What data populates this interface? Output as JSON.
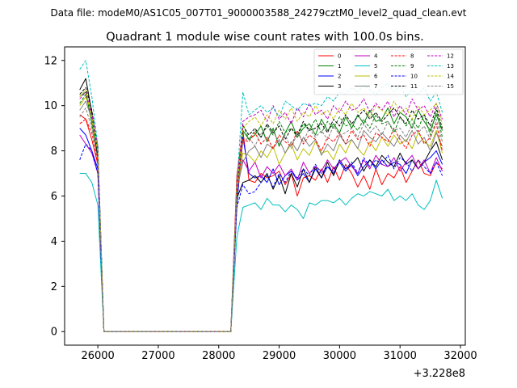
{
  "figure": {
    "suptitle": "Data file: modeM0/AS1C05_007T01_9000003588_24279cztM0_level2_quad_clean.evt"
  },
  "chart_data": {
    "type": "line",
    "title": "Quadrant 1 module wise count rates with 100.0s bins.",
    "xlabel": "",
    "ylabel": "",
    "x_offset_label": "+3.228e8",
    "xlim": [
      25450,
      32080
    ],
    "ylim": [
      -0.6,
      12.6
    ],
    "x_ticks": [
      26000,
      27000,
      28000,
      29000,
      30000,
      31000,
      32000
    ],
    "x_tick_labels": [
      "26000",
      "27000",
      "28000",
      "29000",
      "30000",
      "31000",
      "32000"
    ],
    "y_ticks": [
      0,
      2,
      4,
      6,
      8,
      10,
      12
    ],
    "y_tick_labels": [
      "0",
      "2",
      "4",
      "6",
      "8",
      "10",
      "12"
    ],
    "grid": false,
    "legend_position": "top-right",
    "gap": {
      "x_start": 26100,
      "x_end": 28200,
      "value": 0.0
    },
    "segment1_x": [
      25700,
      25800,
      25900,
      26000
    ],
    "segment2_start": 28300,
    "segment2_step": 100,
    "segment2_count": 35,
    "series": [
      {
        "name": "0",
        "color": "#ff0000",
        "dash": "solid",
        "seg1": [
          9.6,
          9.4,
          8.5,
          7.4
        ],
        "seg2": [
          6.9,
          8.9,
          6.7,
          6.6,
          7.0,
          6.8,
          6.9,
          7.1,
          6.5,
          7.0,
          6.0,
          6.8,
          6.9,
          6.7,
          7.2,
          6.6,
          7.3,
          6.7,
          7.4,
          7.0,
          6.4,
          6.9,
          6.3,
          7.2,
          6.5,
          7.0,
          6.8,
          7.3,
          6.6,
          7.1,
          7.6,
          7.0,
          6.9,
          7.5,
          7.2
        ]
      },
      {
        "name": "1",
        "color": "#008000",
        "dash": "solid",
        "seg1": [
          10.4,
          10.6,
          9.2,
          7.8
        ],
        "seg2": [
          5.8,
          8.9,
          8.5,
          8.7,
          9.1,
          8.4,
          9.0,
          8.2,
          8.8,
          9.3,
          8.6,
          9.0,
          9.2,
          8.7,
          9.4,
          8.9,
          9.2,
          8.8,
          9.5,
          9.0,
          9.6,
          9.2,
          9.8,
          9.3,
          9.4,
          9.9,
          9.2,
          9.7,
          9.5,
          9.0,
          9.8,
          9.3,
          8.9,
          9.6,
          8.9
        ]
      },
      {
        "name": "2",
        "color": "#0000ff",
        "dash": "solid",
        "seg1": [
          9.0,
          8.7,
          8.0,
          7.2
        ],
        "seg2": [
          5.6,
          8.6,
          7.0,
          6.8,
          6.9,
          6.6,
          7.2,
          6.5,
          6.9,
          7.1,
          6.7,
          7.0,
          6.6,
          7.2,
          6.8,
          7.3,
          7.0,
          7.5,
          7.1,
          7.4,
          6.9,
          7.3,
          7.6,
          7.2,
          7.6,
          7.3,
          7.5,
          7.4,
          7.0,
          7.6,
          7.2,
          7.5,
          7.7,
          8.0,
          7.4
        ]
      },
      {
        "name": "3",
        "color": "#000000",
        "dash": "solid",
        "seg1": [
          10.7,
          11.2,
          9.7,
          7.6
        ],
        "seg2": [
          5.9,
          6.6,
          6.7,
          6.9,
          6.6,
          7.0,
          6.3,
          6.9,
          6.1,
          7.0,
          6.4,
          7.2,
          6.6,
          7.3,
          6.8,
          7.5,
          6.9,
          7.6,
          7.2,
          7.4,
          7.7,
          7.1,
          7.6,
          7.3,
          7.8,
          7.5,
          7.3,
          7.9,
          7.4,
          7.6,
          7.2,
          7.5,
          8.0,
          8.4,
          7.6
        ]
      },
      {
        "name": "4",
        "color": "#c000c0",
        "dash": "solid",
        "seg1": [
          8.7,
          8.3,
          7.9,
          7.0
        ],
        "seg2": [
          6.2,
          7.6,
          7.1,
          7.5,
          6.8,
          7.3,
          7.0,
          7.4,
          6.9,
          7.2,
          6.7,
          7.5,
          7.0,
          7.3,
          7.1,
          7.6,
          7.2,
          7.5,
          7.7,
          7.3,
          7.0,
          7.6,
          7.2,
          7.8,
          7.4,
          7.3,
          7.7,
          7.1,
          7.5,
          7.8,
          7.2,
          7.6,
          7.0,
          7.7,
          7.1
        ]
      },
      {
        "name": "5",
        "color": "#00bfbf",
        "dash": "solid",
        "seg1": [
          7.0,
          7.0,
          6.6,
          5.6
        ],
        "seg2": [
          4.2,
          5.5,
          5.6,
          5.7,
          5.4,
          5.9,
          5.6,
          5.6,
          5.3,
          5.6,
          5.4,
          5.0,
          5.7,
          5.6,
          5.8,
          5.8,
          5.7,
          5.9,
          5.6,
          5.9,
          6.1,
          6.0,
          6.2,
          6.1,
          6.0,
          6.3,
          5.8,
          6.0,
          5.8,
          6.1,
          5.6,
          5.4,
          5.8,
          6.7,
          5.9
        ]
      },
      {
        "name": "6",
        "color": "#bfbf00",
        "dash": "solid",
        "seg1": [
          10.0,
          10.4,
          9.6,
          8.0
        ],
        "seg2": [
          6.2,
          7.9,
          7.8,
          7.5,
          8.0,
          7.7,
          8.2,
          7.4,
          7.9,
          8.3,
          7.6,
          8.1,
          7.8,
          8.4,
          7.9,
          8.0,
          7.6,
          8.3,
          7.9,
          8.5,
          8.1,
          7.8,
          8.4,
          8.0,
          8.6,
          8.2,
          8.7,
          8.3,
          8.5,
          8.1,
          8.8,
          8.4,
          8.2,
          8.9,
          7.9
        ]
      },
      {
        "name": "7",
        "color": "#808080",
        "dash": "solid",
        "seg1": [
          9.8,
          10.2,
          9.4,
          7.9
        ],
        "seg2": [
          6.3,
          7.5,
          8.0,
          8.2,
          7.7,
          8.3,
          8.1,
          8.5,
          7.9,
          8.4,
          8.0,
          8.6,
          8.2,
          8.5,
          7.8,
          8.3,
          8.0,
          8.7,
          8.3,
          8.5,
          8.1,
          8.9,
          8.6,
          8.4,
          8.8,
          8.5,
          8.2,
          8.7,
          8.4,
          8.9,
          8.3,
          8.6,
          8.0,
          8.8,
          8.2
        ]
      },
      {
        "name": "8",
        "color": "#ff0000",
        "dash": "dashed",
        "seg1": [
          9.2,
          9.4,
          8.8,
          7.5
        ],
        "seg2": [
          6.0,
          8.5,
          8.4,
          8.8,
          8.3,
          8.6,
          8.1,
          8.7,
          8.4,
          8.2,
          8.9,
          8.3,
          8.7,
          8.5,
          8.0,
          8.6,
          8.4,
          8.8,
          8.3,
          8.9,
          8.5,
          8.7,
          8.2,
          8.8,
          8.6,
          8.4,
          9.0,
          8.5,
          8.1,
          8.7,
          8.9,
          8.3,
          8.6,
          9.2,
          8.0
        ]
      },
      {
        "name": "9",
        "color": "#008000",
        "dash": "dashed",
        "seg1": [
          10.1,
          10.5,
          9.5,
          7.9
        ],
        "seg2": [
          6.1,
          9.2,
          8.5,
          8.9,
          8.6,
          9.1,
          8.7,
          9.3,
          8.8,
          9.0,
          8.6,
          9.2,
          8.9,
          9.4,
          8.8,
          9.3,
          9.0,
          9.5,
          9.1,
          9.2,
          8.9,
          9.4,
          9.0,
          9.6,
          9.2,
          9.3,
          8.8,
          9.5,
          9.1,
          9.4,
          9.0,
          9.6,
          8.7,
          9.8,
          8.6
        ]
      },
      {
        "name": "10",
        "color": "#0000ff",
        "dash": "dashed",
        "seg1": [
          7.6,
          8.3,
          8.0,
          7.0
        ],
        "seg2": [
          5.5,
          6.5,
          6.1,
          6.2,
          6.6,
          6.9,
          6.4,
          7.0,
          6.6,
          7.1,
          6.8,
          7.2,
          6.9,
          7.4,
          7.0,
          7.3,
          7.1,
          7.6,
          7.2,
          7.5,
          7.0,
          7.7,
          7.3,
          7.6,
          7.4,
          7.8,
          7.2,
          7.7,
          7.5,
          7.1,
          7.6,
          7.3,
          7.0,
          7.5,
          6.9
        ]
      },
      {
        "name": "11",
        "color": "#000000",
        "dash": "dashed",
        "seg1": [
          10.5,
          10.8,
          9.8,
          8.1
        ],
        "seg2": [
          6.2,
          9.1,
          8.7,
          9.0,
          8.6,
          9.2,
          8.8,
          9.1,
          8.5,
          9.0,
          8.7,
          9.3,
          8.9,
          9.0,
          9.2,
          8.8,
          9.4,
          9.1,
          9.6,
          9.2,
          9.5,
          9.8,
          9.4,
          9.7,
          9.3,
          9.6,
          9.9,
          9.5,
          9.2,
          9.8,
          9.4,
          9.6,
          9.1,
          9.9,
          9.0
        ]
      },
      {
        "name": "12",
        "color": "#c000c0",
        "dash": "dashed",
        "seg1": [
          10.3,
          10.6,
          9.6,
          8.2
        ],
        "seg2": [
          6.4,
          9.3,
          9.5,
          9.6,
          9.8,
          9.3,
          10.0,
          9.4,
          9.7,
          9.2,
          9.9,
          9.5,
          10.1,
          9.6,
          9.8,
          9.4,
          10.0,
          9.7,
          10.2,
          9.8,
          9.9,
          10.3,
          9.7,
          10.1,
          9.8,
          10.2,
          9.5,
          10.0,
          9.6,
          10.3,
          9.8,
          10.0,
          9.5,
          10.1,
          9.4
        ]
      },
      {
        "name": "13",
        "color": "#00bfbf",
        "dash": "dashed",
        "seg1": [
          11.6,
          12.0,
          10.4,
          8.2
        ],
        "seg2": [
          6.5,
          10.6,
          9.6,
          9.8,
          10.0,
          9.7,
          9.9,
          9.5,
          10.2,
          10.0,
          9.8,
          10.1,
          10.0,
          10.1,
          10.0,
          10.4,
          10.2,
          10.6,
          10.5,
          10.8,
          10.6,
          10.9,
          10.7,
          10.5,
          10.8,
          11.0,
          10.6,
          10.9,
          10.4,
          10.7,
          10.5,
          10.8,
          10.2,
          10.6,
          9.7
        ]
      },
      {
        "name": "14",
        "color": "#bfbf00",
        "dash": "dashed",
        "seg1": [
          10.4,
          10.7,
          9.4,
          8.0
        ],
        "seg2": [
          6.3,
          9.0,
          9.3,
          9.5,
          9.1,
          9.6,
          9.2,
          9.8,
          9.4,
          9.9,
          9.3,
          9.7,
          9.5,
          10.0,
          9.6,
          9.8,
          9.4,
          9.9,
          9.6,
          10.1,
          9.7,
          9.9,
          9.5,
          10.0,
          9.8,
          9.6,
          10.2,
          9.7,
          9.9,
          9.4,
          10.0,
          9.6,
          9.8,
          10.1,
          9.2
        ]
      },
      {
        "name": "15",
        "color": "#808080",
        "dash": "dashed",
        "seg1": [
          9.5,
          9.9,
          9.0,
          7.6
        ],
        "seg2": [
          6.0,
          8.4,
          8.6,
          8.2,
          8.8,
          8.5,
          8.9,
          8.3,
          8.7,
          8.1,
          8.8,
          8.4,
          9.0,
          8.6,
          8.9,
          8.5,
          9.1,
          8.7,
          8.8,
          9.0,
          8.6,
          9.2,
          8.8,
          9.1,
          8.7,
          9.3,
          8.9,
          9.0,
          8.6,
          9.2,
          8.8,
          9.1,
          8.5,
          9.4,
          8.4
        ]
      }
    ]
  }
}
